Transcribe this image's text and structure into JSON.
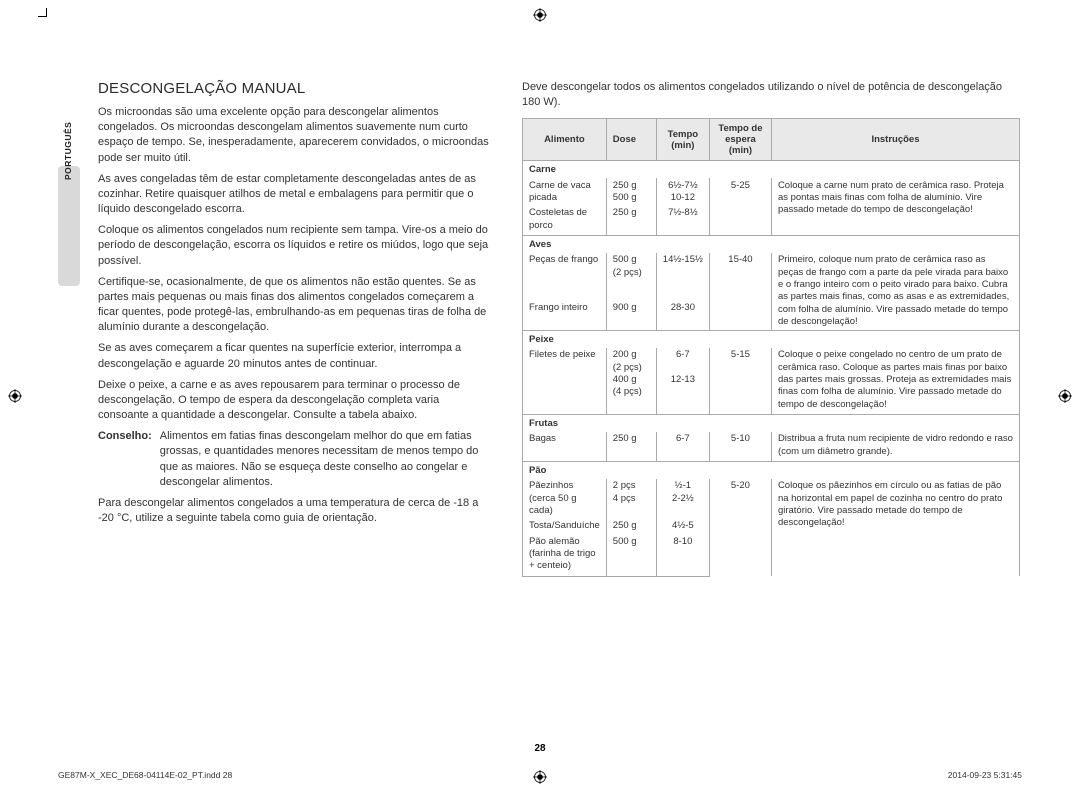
{
  "lang_tab": "PORTUGUÊS",
  "left": {
    "title": "DESCONGELAÇÃO MANUAL",
    "p1": "Os microondas são uma excelente opção para descongelar alimentos congelados. Os microondas descongelam alimentos suavemente num curto espaço de tempo. Se, inesperadamente, aparecerem convidados, o microondas pode ser muito útil.",
    "p2": "As aves congeladas têm de estar completamente descongeladas antes de as cozinhar. Retire quaisquer atilhos de metal e embalagens para permitir que o líquido descongelado escorra.",
    "p3": "Coloque os alimentos congelados num recipiente sem tampa. Vire-os a meio do período de descongelação, escorra os líquidos e retire os miúdos, logo que seja possível.",
    "p4": "Certifique-se, ocasionalmente, de que os alimentos não estão quentes. Se as partes mais pequenas ou mais finas dos alimentos congelados começarem a ficar quentes, pode protegê-las, embrulhando-as em pequenas tiras de folha de alumínio durante a descongelação.",
    "p5": "Se as aves começarem a ficar quentes na superfície exterior, interrompa a descongelação e aguarde 20 minutos antes de continuar.",
    "p6": "Deixe o peixe, a carne e as aves repousarem para terminar o processo de descongelação. O tempo de espera da descongelação completa varia consoante a quantidade a descongelar. Consulte a tabela abaixo.",
    "conselho_label": "Conselho:",
    "conselho_text": "Alimentos em fatias finas descongelam melhor do que em fatias grossas, e quantidades menores necessitam de menos tempo do que as maiores. Não se esqueça deste conselho ao congelar e descongelar alimentos.",
    "p7": "Para descongelar alimentos congelados a uma temperatura de cerca de -18 a -20 °C, utilize a seguinte tabela como guia de orientação."
  },
  "right": {
    "intro": "Deve descongelar todos os alimentos congelados utilizando o nível de potência de descongelação 180 W).",
    "headers": [
      "Alimento",
      "Dose",
      "Tempo (min)",
      "Tempo de espera (min)",
      "Instruções"
    ],
    "sections": [
      {
        "cat": "Carne",
        "rows": [
          {
            "a": "Carne de vaca picada",
            "d": "250 g\n500 g",
            "t": "6½-7½\n10-12",
            "e": "5-25",
            "i": "Coloque a carne num prato de cerâmica raso. Proteja as pontas mais finas com folha de alumínio. Vire passado metade do tempo de descongelação!"
          },
          {
            "a": "Costeletas de porco",
            "d": "250 g",
            "t": "7½-8½",
            "e": "",
            "i": ""
          }
        ]
      },
      {
        "cat": "Aves",
        "rows": [
          {
            "a": "Peças de frango",
            "d": "500 g\n(2 pçs)",
            "t": "14½-15½",
            "e": "15-40",
            "i": "Primeiro, coloque num prato de cerâmica raso as peças de frango com a parte da pele virada para baixo e o frango inteiro com o peito virado para baixo. Cubra as partes mais finas, como as asas e as extremidades, com folha de alumínio. Vire passado metade do tempo de descongelação!"
          },
          {
            "a": "Frango inteiro",
            "d": "900 g",
            "t": "28-30",
            "e": "",
            "i": ""
          }
        ]
      },
      {
        "cat": "Peixe",
        "rows": [
          {
            "a": "Filetes de peixe",
            "d": "200 g\n(2 pçs)\n400 g\n(4 pçs)",
            "t": "6-7\n\n12-13",
            "e": "5-15",
            "i": "Coloque o peixe congelado no centro de um prato de cerâmica raso. Coloque as partes mais finas por baixo das partes mais grossas. Proteja as extremidades mais finas com folha de alumínio. Vire passado metade do tempo de descongelação!"
          }
        ]
      },
      {
        "cat": "Frutas",
        "rows": [
          {
            "a": "Bagas",
            "d": "250 g",
            "t": "6-7",
            "e": "5-10",
            "i": "Distribua a fruta num recipiente de vidro redondo e raso (com um diâmetro grande)."
          }
        ]
      },
      {
        "cat": "Pão",
        "rows": [
          {
            "a": "Pãezinhos (cerca 50 g cada)",
            "d": "2 pçs\n4 pçs",
            "t": "½-1\n2-2½",
            "e": "5-20",
            "i": "Coloque os pãezinhos em círculo ou as fatias de pão na horizontal em papel de cozinha no centro do prato giratório. Vire passado metade do tempo de descongelação!"
          },
          {
            "a": "Tosta/Sanduíche",
            "d": "250 g",
            "t": "4½-5",
            "e": "",
            "i": ""
          },
          {
            "a": "Pão alemão (farinha de trigo + centeio)",
            "d": "500 g",
            "t": "8-10",
            "e": "",
            "i": ""
          }
        ]
      }
    ]
  },
  "footer": {
    "page": "28",
    "left": "GE87M-X_XEC_DE68-04114E-02_PT.indd   28",
    "right": "2014-09-23   5:31:45"
  }
}
